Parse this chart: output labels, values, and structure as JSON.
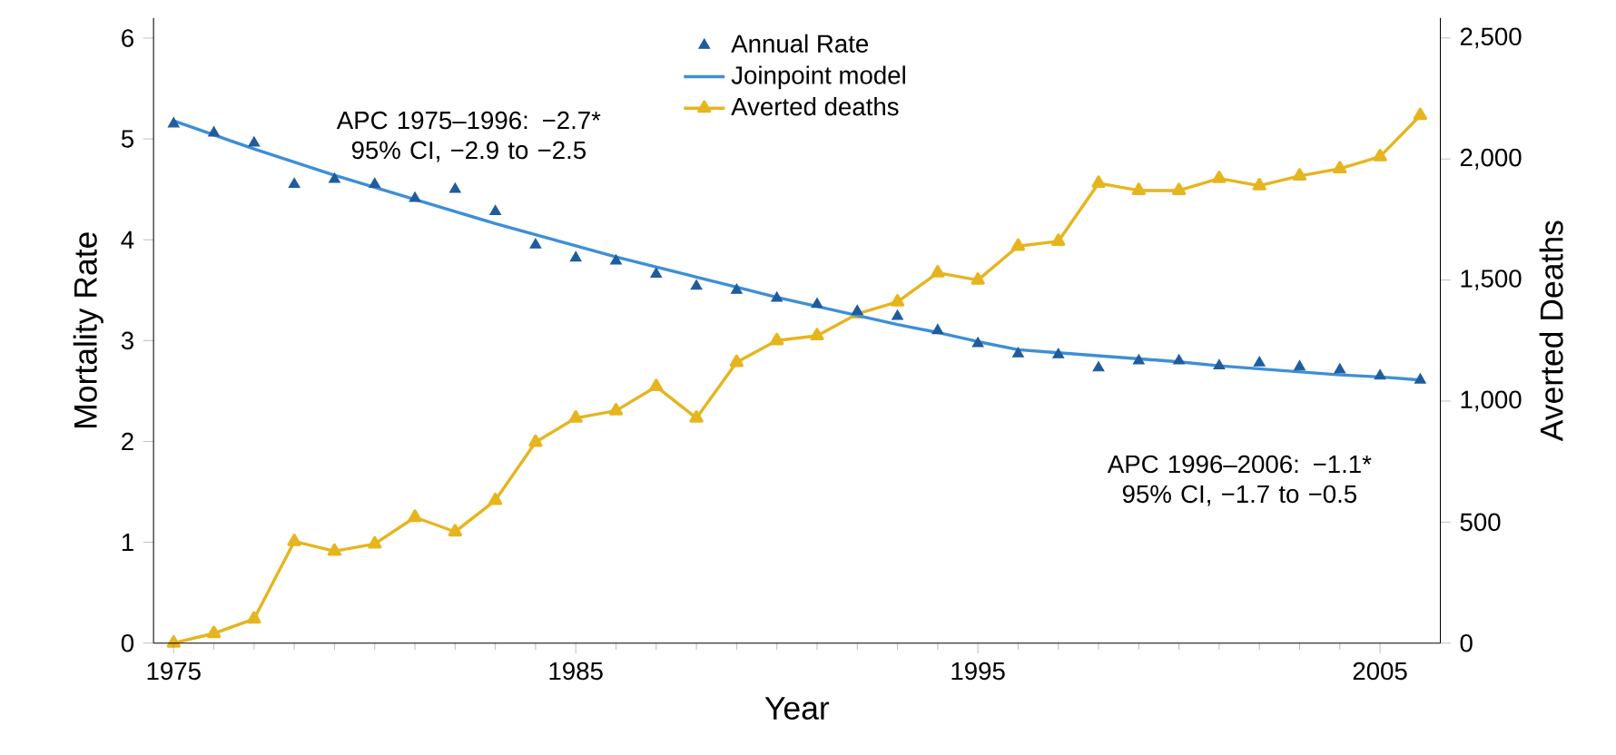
{
  "chart_data": {
    "type": "line",
    "xlabel": "Year",
    "ylabel": "Mortality Rate",
    "y2label": "Averted Deaths",
    "xlim": [
      1974.5,
      2006.5
    ],
    "xticks": [
      1975,
      1985,
      1995,
      2005
    ],
    "ylim": [
      0,
      6.2
    ],
    "yticks": [
      0,
      1,
      2,
      3,
      4,
      5,
      6
    ],
    "y2lim": [
      0,
      2583
    ],
    "y2ticks": [
      0,
      500,
      {
        "value": 1000,
        "label": "1,000"
      },
      {
        "value": 1500,
        "label": "1,500"
      },
      {
        "value": 2000,
        "label": "2,000"
      },
      {
        "value": 2500,
        "label": "2,500"
      }
    ],
    "legend": "top",
    "grid": false,
    "x": [
      1975,
      1976,
      1977,
      1978,
      1979,
      1980,
      1981,
      1982,
      1983,
      1984,
      1985,
      1986,
      1987,
      1988,
      1989,
      1990,
      1991,
      1992,
      1993,
      1994,
      1995,
      1996,
      1997,
      1998,
      1999,
      2000,
      2001,
      2002,
      2003,
      2004,
      2005,
      2006
    ],
    "series": [
      {
        "name": "Annual Rate",
        "type": "scatter",
        "marker": "triangle",
        "color": "#1f5c9e",
        "values": [
          5.15,
          5.06,
          4.96,
          4.55,
          4.6,
          4.55,
          4.41,
          4.5,
          4.28,
          3.95,
          3.82,
          3.79,
          3.66,
          3.54,
          3.5,
          3.42,
          3.36,
          3.29,
          3.24,
          3.1,
          2.97,
          2.87,
          2.86,
          2.73,
          2.8,
          2.8,
          2.75,
          2.78,
          2.74,
          2.71,
          2.65,
          2.61
        ]
      },
      {
        "name": "Joinpoint model",
        "marker": "none",
        "color": "#3d8fd6",
        "values": [
          5.18,
          5.04,
          4.9,
          4.77,
          4.64,
          4.52,
          4.4,
          4.28,
          4.16,
          4.05,
          3.94,
          3.83,
          3.73,
          3.63,
          3.53,
          3.43,
          3.34,
          3.25,
          3.16,
          3.08,
          2.99,
          2.91,
          2.88,
          2.85,
          2.82,
          2.79,
          2.75,
          2.72,
          2.69,
          2.66,
          2.64,
          2.61
        ]
      },
      {
        "name": "Averted deaths",
        "marker": "triangle",
        "axis": "y2",
        "color": "#e6b51e",
        "values": [
          0,
          40,
          100,
          420,
          380,
          410,
          520,
          460,
          590,
          830,
          930,
          960,
          1060,
          930,
          1160,
          1250,
          1270,
          1360,
          1410,
          1530,
          1500,
          1640,
          1660,
          1900,
          1870,
          1870,
          1920,
          1890,
          1930,
          1960,
          2010,
          2180
        ]
      }
    ],
    "annotations": [
      "APC 1975–1996: −2.7* 95% CI, −2.9 to −2.5",
      "APC 1996–2006: −1.1* 95% CI, −1.7 to −0.5"
    ]
  }
}
